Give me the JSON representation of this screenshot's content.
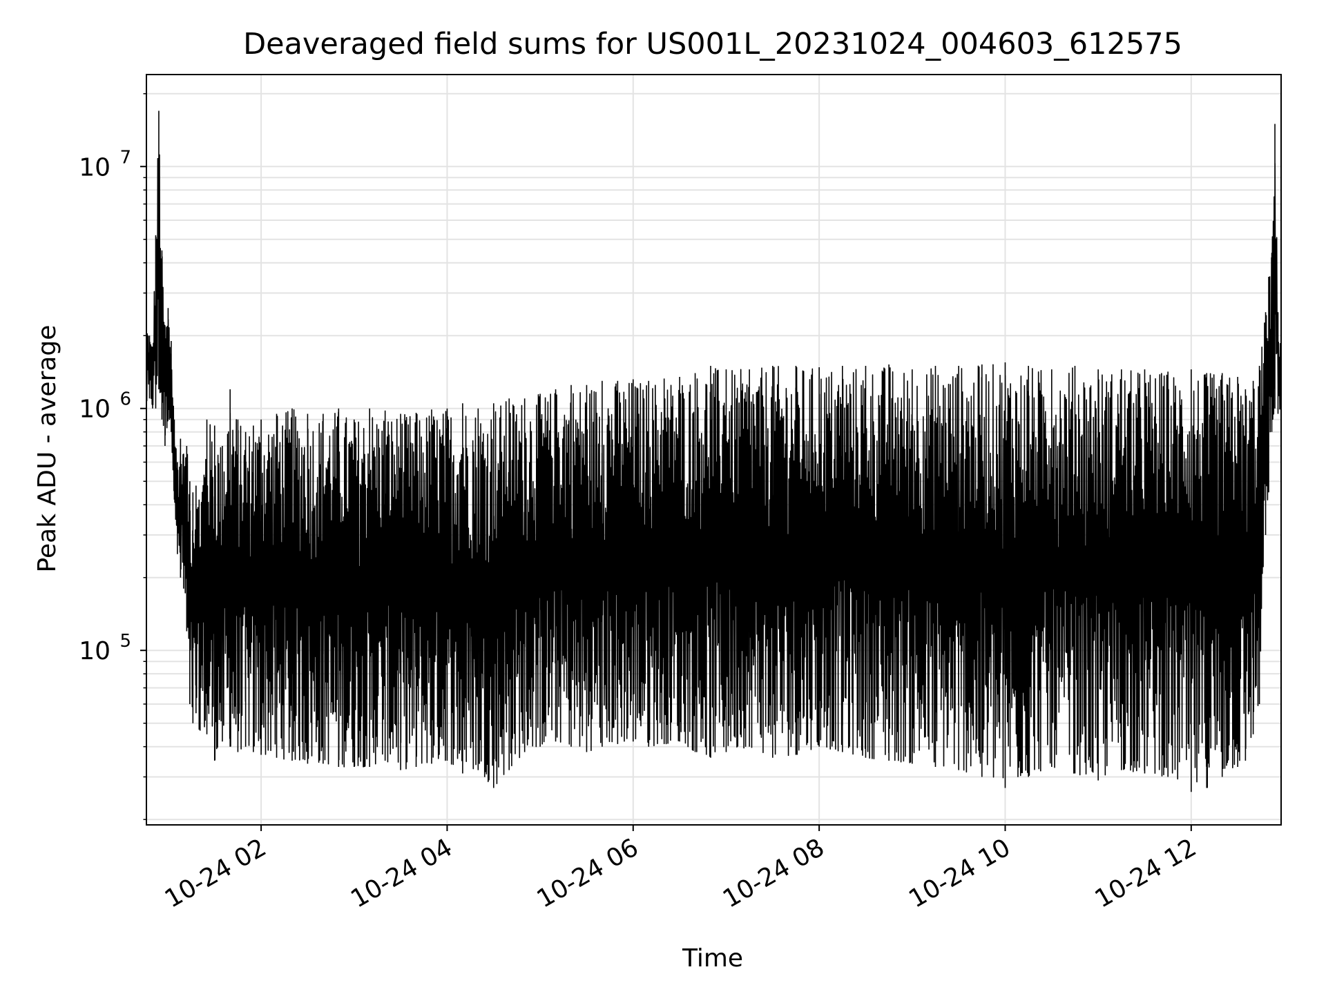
{
  "chart_data": {
    "type": "line",
    "title": "Deaveraged field sums for US001L_20231024_004603_612575",
    "xlabel": "Time",
    "ylabel": "Peak ADU - average",
    "yscale": "log",
    "ylim": [
      19000,
      24000000
    ],
    "xlim": [
      "10-24 00:46",
      "10-24 12:58"
    ],
    "grid": true,
    "x_ticks": [
      {
        "t": "10-24 02:00",
        "label": "10-24 02"
      },
      {
        "t": "10-24 04:00",
        "label": "10-24 04"
      },
      {
        "t": "10-24 06:00",
        "label": "10-24 06"
      },
      {
        "t": "10-24 08:00",
        "label": "10-24 08"
      },
      {
        "t": "10-24 10:00",
        "label": "10-24 10"
      },
      {
        "t": "10-24 12:00",
        "label": "10-24 12"
      }
    ],
    "y_ticks": [
      {
        "v": 100000,
        "base": "10",
        "exp": "5"
      },
      {
        "v": 1000000,
        "base": "10",
        "exp": "6"
      },
      {
        "v": 10000000,
        "base": "10",
        "exp": "7"
      }
    ],
    "line_color": "#000000",
    "series": [
      {
        "x": [
          "10-24 00:46",
          "10-24 00:48",
          "10-24 00:50",
          "10-24 00:52",
          "10-24 00:54",
          "10-24 00:56",
          "10-24 00:58",
          "10-24 01:00",
          "10-24 01:02",
          "10-24 01:04",
          "10-24 01:06",
          "10-24 01:08",
          "10-24 01:10",
          "10-24 01:12",
          "10-24 01:14",
          "10-24 01:16",
          "10-24 01:18",
          "10-24 01:20",
          "10-24 01:25",
          "10-24 01:30",
          "10-24 01:35",
          "10-24 01:40",
          "10-24 01:45",
          "10-24 01:50",
          "10-24 01:55",
          "10-24 02:00",
          "10-24 02:10",
          "10-24 02:20",
          "10-24 02:30",
          "10-24 02:40",
          "10-24 02:50",
          "10-24 03:00",
          "10-24 03:10",
          "10-24 03:20",
          "10-24 03:30",
          "10-24 03:40",
          "10-24 03:50",
          "10-24 04:00",
          "10-24 04:10",
          "10-24 04:20",
          "10-24 04:30",
          "10-24 04:40",
          "10-24 04:50",
          "10-24 05:00",
          "10-24 05:10",
          "10-24 05:20",
          "10-24 05:30",
          "10-24 05:40",
          "10-24 05:50",
          "10-24 06:00",
          "10-24 06:10",
          "10-24 06:20",
          "10-24 06:30",
          "10-24 06:40",
          "10-24 06:50",
          "10-24 07:00",
          "10-24 07:15",
          "10-24 07:30",
          "10-24 07:45",
          "10-24 08:00",
          "10-24 08:15",
          "10-24 08:30",
          "10-24 08:45",
          "10-24 09:00",
          "10-24 09:15",
          "10-24 09:30",
          "10-24 09:45",
          "10-24 10:00",
          "10-24 10:15",
          "10-24 10:30",
          "10-24 10:45",
          "10-24 11:00",
          "10-24 11:15",
          "10-24 11:30",
          "10-24 11:45",
          "10-24 12:00",
          "10-24 12:10",
          "10-24 12:20",
          "10-24 12:30",
          "10-24 12:35",
          "10-24 12:40",
          "10-24 12:44",
          "10-24 12:48",
          "10-24 12:50",
          "10-24 12:52",
          "10-24 12:54",
          "10-24 12:56",
          "10-24 12:58"
        ],
        "high": [
          2300000,
          2000000,
          1800000,
          5200000,
          17000000,
          4500000,
          2200000,
          2600000,
          1900000,
          900000,
          600000,
          750000,
          650000,
          700000,
          500000,
          450000,
          480000,
          420000,
          900000,
          850000,
          700000,
          1200000,
          900000,
          800000,
          850000,
          900000,
          950000,
          1000000,
          950000,
          950000,
          1000000,
          900000,
          1000000,
          980000,
          950000,
          960000,
          990000,
          1000000,
          1050000,
          1000000,
          1050000,
          1100000,
          1100000,
          1150000,
          1200000,
          1250000,
          1250000,
          1300000,
          1300000,
          1320000,
          1300000,
          1330000,
          1350000,
          1400000,
          1500000,
          1450000,
          1450000,
          1500000,
          1500000,
          1480000,
          1500000,
          1500000,
          1520000,
          1450000,
          1500000,
          1500000,
          1520000,
          1550000,
          1500000,
          1450000,
          1500000,
          1450000,
          1450000,
          1450000,
          1420000,
          1450000,
          1400000,
          1400000,
          1350000,
          1200000,
          1300000,
          1500000,
          2500000,
          3500000,
          4400000,
          15000000,
          2500000,
          1800000
        ],
        "low": [
          1000000,
          1100000,
          1000000,
          1000000,
          1200000,
          900000,
          700000,
          900000,
          800000,
          420000,
          250000,
          200000,
          180000,
          120000,
          60000,
          50000,
          55000,
          47000,
          45000,
          35000,
          42000,
          40000,
          38000,
          40000,
          38000,
          37000,
          36000,
          35000,
          34000,
          34000,
          33000,
          33000,
          33000,
          35000,
          32000,
          33000,
          34000,
          35000,
          31000,
          32000,
          27000,
          32000,
          38000,
          40000,
          42000,
          40000,
          38000,
          40000,
          41000,
          42000,
          40000,
          41000,
          42000,
          38000,
          36000,
          38000,
          40000,
          36000,
          37000,
          40000,
          38000,
          36000,
          35000,
          34000,
          33000,
          32000,
          30000,
          27000,
          30000,
          33000,
          31000,
          29000,
          32000,
          31000,
          30000,
          26000,
          27000,
          30000,
          33000,
          35000,
          45000,
          60000,
          300000,
          450000,
          800000,
          1000000,
          950000,
          1000000
        ]
      }
    ]
  }
}
